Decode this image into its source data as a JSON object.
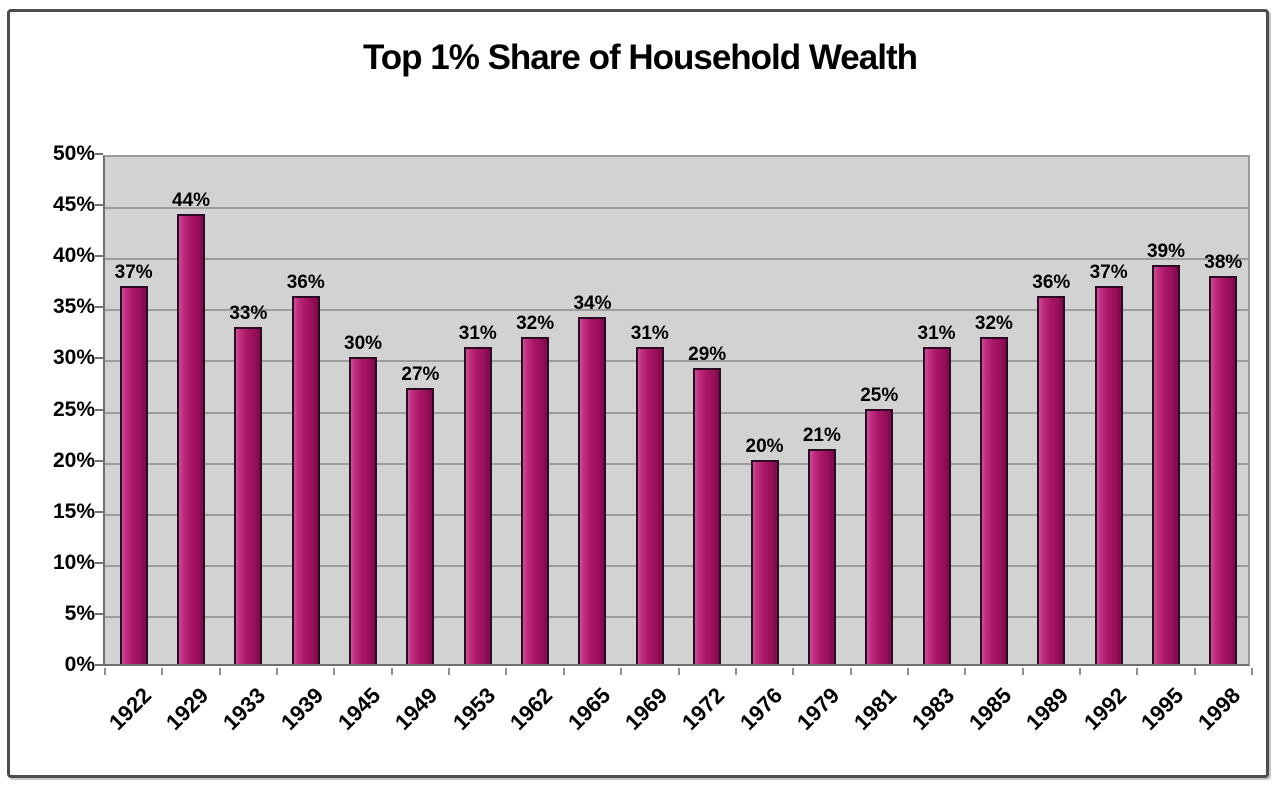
{
  "chart_data": {
    "type": "bar",
    "title": "Top 1% Share of Household Wealth",
    "categories": [
      "1922",
      "1929",
      "1933",
      "1939",
      "1945",
      "1949",
      "1953",
      "1962",
      "1965",
      "1969",
      "1972",
      "1976",
      "1979",
      "1981",
      "1983",
      "1985",
      "1989",
      "1992",
      "1995",
      "1998"
    ],
    "values": [
      37,
      44,
      33,
      36,
      30,
      27,
      31,
      32,
      34,
      31,
      29,
      20,
      21,
      25,
      31,
      32,
      36,
      37,
      39,
      38
    ],
    "value_labels": [
      "37%",
      "44%",
      "33%",
      "36%",
      "30%",
      "27%",
      "31%",
      "32%",
      "34%",
      "31%",
      "29%",
      "20%",
      "21%",
      "25%",
      "31%",
      "32%",
      "36%",
      "37%",
      "39%",
      "38%"
    ],
    "xlabel": "",
    "ylabel": "",
    "ylim": [
      0,
      50
    ],
    "y_step": 5,
    "y_tick_labels": [
      "0%",
      "5%",
      "10%",
      "15%",
      "20%",
      "25%",
      "30%",
      "35%",
      "40%",
      "45%",
      "50%"
    ],
    "grid": true,
    "legend": "none",
    "colors": {
      "bar_fill_light": "#c25795",
      "bar_fill_mid": "#ab1768",
      "bar_fill_dark": "#7c0b4a",
      "bar_border": "#2d0a24",
      "plot_background": "#d3d2d2",
      "gridline": "#9c9c9c",
      "axis": "#6f6f6f",
      "text": "#000000",
      "frame_border": "#4d4d4d",
      "page_background": "#ffffff"
    }
  }
}
